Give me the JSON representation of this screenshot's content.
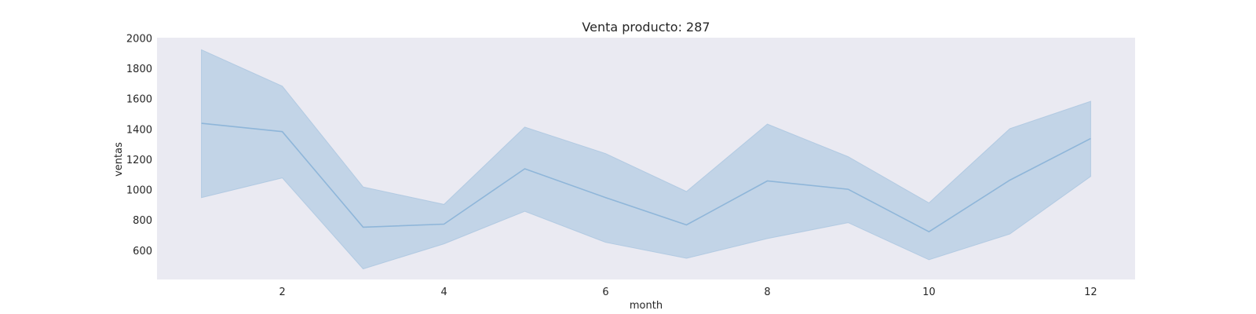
{
  "chart_data": {
    "type": "line",
    "title": "Venta producto: 287",
    "xlabel": "month",
    "ylabel": "ventas",
    "x": [
      1,
      2,
      3,
      4,
      5,
      6,
      7,
      8,
      9,
      10,
      11,
      12
    ],
    "series": [
      {
        "values": [
          1440,
          1385,
          755,
          775,
          1140,
          950,
          770,
          1060,
          1005,
          725,
          1065,
          1340
        ],
        "ci_lower": [
          950,
          1080,
          480,
          645,
          860,
          655,
          550,
          680,
          785,
          540,
          710,
          1090
        ],
        "ci_upper": [
          1925,
          1685,
          1020,
          905,
          1415,
          1240,
          990,
          1435,
          1220,
          915,
          1405,
          1585
        ]
      }
    ],
    "xticks": [
      2,
      4,
      6,
      8,
      10,
      12
    ],
    "yticks": [
      600,
      800,
      1000,
      1200,
      1400,
      1600,
      1800,
      2000
    ],
    "xlim": [
      0.45,
      12.55
    ],
    "ylim": [
      410,
      2005
    ],
    "grid": false,
    "colors": {
      "plot_background": "#eaeaf2",
      "line": "#8fb6d9",
      "band": "#aac6e0"
    }
  }
}
